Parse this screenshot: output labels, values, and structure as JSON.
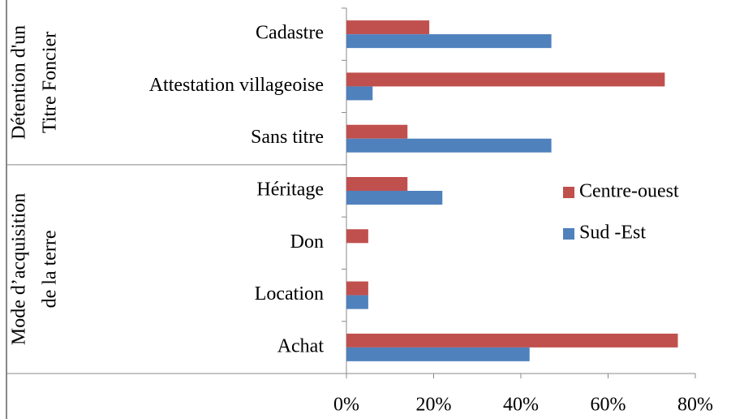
{
  "chart_data": {
    "type": "hbar",
    "categories": [
      "Cadastre",
      "Attestation villageoise",
      "Sans titre",
      "Héritage",
      "Don",
      "Location",
      "Achat"
    ],
    "groups": [
      {
        "lines": [
          "Détention d'un",
          "Titre Foncier"
        ],
        "from": 0,
        "to": 2
      },
      {
        "lines": [
          "Mode d’acquisition",
          "de la terre"
        ],
        "from": 3,
        "to": 6
      }
    ],
    "series": [
      {
        "name": "Centre-ouest",
        "color": "#c0504d",
        "values": [
          19,
          73,
          14,
          14,
          5,
          5,
          76
        ]
      },
      {
        "name": "Sud -Est",
        "color": "#4f81bd",
        "values": [
          47,
          6,
          47,
          22,
          0,
          5,
          42
        ]
      }
    ],
    "xlim": [
      0,
      80
    ],
    "xticks": [
      {
        "value": 0,
        "label": "0%"
      },
      {
        "value": 20,
        "label": "20%"
      },
      {
        "value": 40,
        "label": "40%"
      },
      {
        "value": 60,
        "label": "60%"
      },
      {
        "value": 80,
        "label": "80%"
      }
    ],
    "legend": "right"
  }
}
